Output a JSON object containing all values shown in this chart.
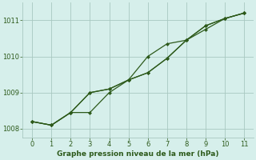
{
  "x": [
    0,
    1,
    2,
    3,
    4,
    5,
    6,
    7,
    8,
    9,
    10,
    11
  ],
  "line_upper": [
    1008.2,
    1008.1,
    1008.45,
    1008.45,
    1009.0,
    1009.35,
    1010.0,
    1010.35,
    1010.45,
    1010.75,
    1011.05,
    1011.2
  ],
  "line_mid": [
    1008.2,
    1008.1,
    1008.45,
    1009.0,
    1009.1,
    1009.35,
    1009.55,
    1009.95,
    1010.45,
    1010.85,
    1011.05,
    1011.2
  ],
  "line_lower": [
    1008.2,
    1008.1,
    1008.45,
    1009.0,
    1009.1,
    1009.35,
    1009.55,
    1009.95,
    1010.45,
    1010.85,
    1011.05,
    1011.2
  ],
  "line_color": "#2d5a1b",
  "bg_color": "#d6efeb",
  "grid_color": "#a8c8c0",
  "xlabel": "Graphe pression niveau de la mer (hPa)",
  "ylim": [
    1007.75,
    1011.5
  ],
  "xlim": [
    -0.5,
    11.5
  ],
  "yticks": [
    1008,
    1009,
    1010,
    1011
  ],
  "xticks": [
    0,
    1,
    2,
    3,
    4,
    5,
    6,
    7,
    8,
    9,
    10,
    11
  ]
}
